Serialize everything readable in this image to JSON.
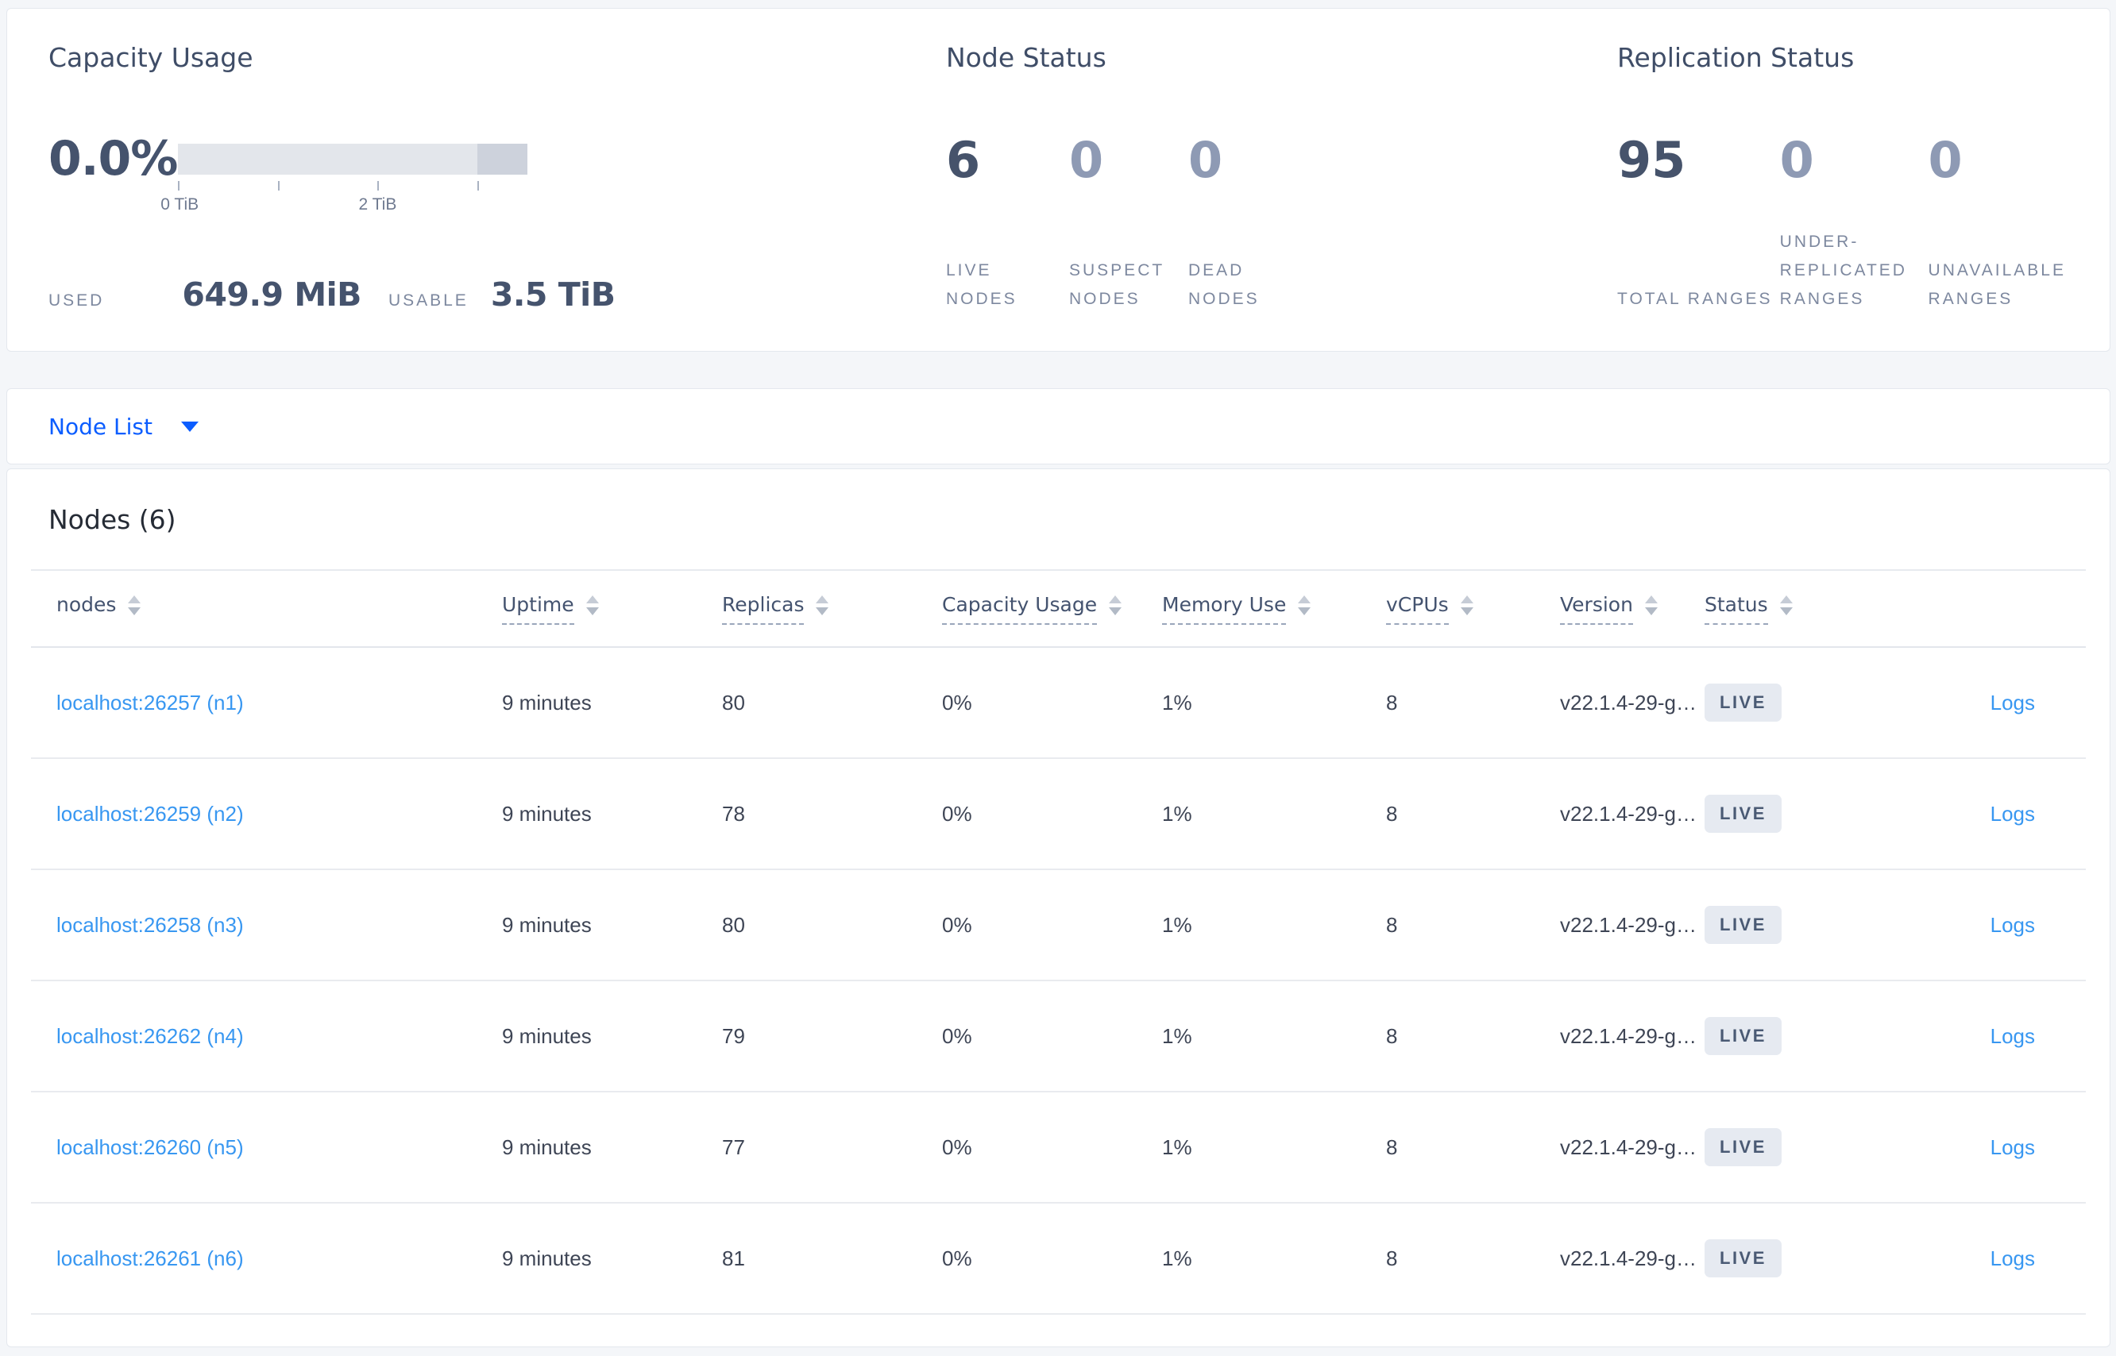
{
  "summary": {
    "capacity": {
      "title": "Capacity Usage",
      "percent_used": "0.0%",
      "axis_ticks": [
        "0 TiB",
        "",
        "2 TiB",
        ""
      ],
      "bar": {
        "total": "3.5 TiB",
        "highlight_from": "3 TiB",
        "track_color": "#e3e6eb",
        "segment_color": "#cdd2dc"
      },
      "used": {
        "label": "USED",
        "value": "649.9 MiB"
      },
      "usable": {
        "label": "USABLE",
        "value": "3.5 TiB"
      }
    },
    "node_status": {
      "title": "Node Status",
      "stats": [
        {
          "value": "6",
          "label": "LIVE NODES"
        },
        {
          "value": "0",
          "label": "SUSPECT NODES"
        },
        {
          "value": "0",
          "label": "DEAD NODES"
        }
      ]
    },
    "replication_status": {
      "title": "Replication Status",
      "stats": [
        {
          "value": "95",
          "label": "TOTAL RANGES"
        },
        {
          "value": "0",
          "label": "UNDER-REPLICATED RANGES"
        },
        {
          "value": "0",
          "label": "UNAVAILABLE RANGES"
        }
      ]
    }
  },
  "view_selector": {
    "label": "Node List"
  },
  "nodes_table": {
    "title": "Nodes (6)",
    "columns": [
      "nodes",
      "Uptime",
      "Replicas",
      "Capacity Usage",
      "Memory Use",
      "vCPUs",
      "Version",
      "Status"
    ],
    "rows": [
      {
        "address": "localhost:26257 (n1)",
        "uptime": "9 minutes",
        "replicas": "80",
        "capacity": "0%",
        "memory": "1%",
        "vcpus": "8",
        "version": "v22.1.4-29-g…",
        "status": "LIVE",
        "logs": "Logs"
      },
      {
        "address": "localhost:26259 (n2)",
        "uptime": "9 minutes",
        "replicas": "78",
        "capacity": "0%",
        "memory": "1%",
        "vcpus": "8",
        "version": "v22.1.4-29-g…",
        "status": "LIVE",
        "logs": "Logs"
      },
      {
        "address": "localhost:26258 (n3)",
        "uptime": "9 minutes",
        "replicas": "80",
        "capacity": "0%",
        "memory": "1%",
        "vcpus": "8",
        "version": "v22.1.4-29-g…",
        "status": "LIVE",
        "logs": "Logs"
      },
      {
        "address": "localhost:26262 (n4)",
        "uptime": "9 minutes",
        "replicas": "79",
        "capacity": "0%",
        "memory": "1%",
        "vcpus": "8",
        "version": "v22.1.4-29-g…",
        "status": "LIVE",
        "logs": "Logs"
      },
      {
        "address": "localhost:26260 (n5)",
        "uptime": "9 minutes",
        "replicas": "77",
        "capacity": "0%",
        "memory": "1%",
        "vcpus": "8",
        "version": "v22.1.4-29-g…",
        "status": "LIVE",
        "logs": "Logs"
      },
      {
        "address": "localhost:26261 (n6)",
        "uptime": "9 minutes",
        "replicas": "81",
        "capacity": "0%",
        "memory": "1%",
        "vcpus": "8",
        "version": "v22.1.4-29-g…",
        "status": "LIVE",
        "logs": "Logs"
      }
    ]
  },
  "colors": {
    "page_bg": "#f4f6f9",
    "selector_blue": "#0b5dff",
    "link_blue": "#3897f1",
    "badge_bg": "#e6eaf1",
    "badge_text": "#4a5a74",
    "heading_slate": "#3f4d67",
    "muted_label": "#7d889f"
  }
}
